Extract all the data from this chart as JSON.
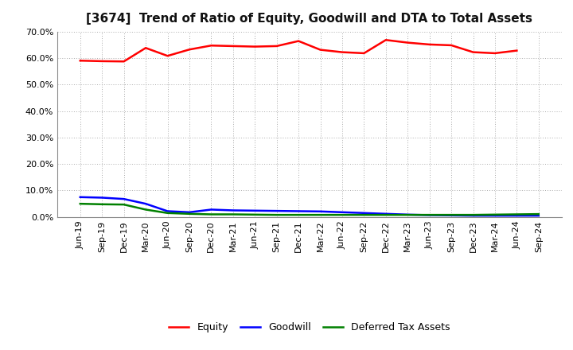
{
  "title": "[3674]  Trend of Ratio of Equity, Goodwill and DTA to Total Assets",
  "x_labels": [
    "Jun-19",
    "Sep-19",
    "Dec-19",
    "Mar-20",
    "Jun-20",
    "Sep-20",
    "Dec-20",
    "Mar-21",
    "Jun-21",
    "Sep-21",
    "Dec-21",
    "Mar-22",
    "Jun-22",
    "Sep-22",
    "Dec-22",
    "Mar-23",
    "Jun-23",
    "Sep-23",
    "Dec-23",
    "Mar-24",
    "Jun-24",
    "Sep-24"
  ],
  "equity": [
    59.0,
    58.8,
    58.7,
    63.8,
    60.8,
    63.2,
    64.7,
    64.5,
    64.3,
    64.5,
    66.4,
    63.1,
    62.2,
    61.8,
    66.8,
    65.8,
    65.1,
    64.8,
    62.2,
    61.8,
    62.8,
    null
  ],
  "goodwill": [
    7.5,
    7.3,
    6.8,
    5.0,
    2.2,
    1.8,
    2.8,
    2.5,
    2.4,
    2.3,
    2.2,
    2.1,
    1.8,
    1.5,
    1.2,
    0.9,
    0.7,
    0.6,
    0.5,
    0.5,
    0.5,
    0.5
  ],
  "dta": [
    5.0,
    4.8,
    4.7,
    2.8,
    1.5,
    1.2,
    1.0,
    1.0,
    0.9,
    0.8,
    0.8,
    0.8,
    0.8,
    0.8,
    0.8,
    0.8,
    0.8,
    0.8,
    0.8,
    0.9,
    1.0,
    1.1
  ],
  "equity_color": "#ff0000",
  "goodwill_color": "#0000ff",
  "dta_color": "#008000",
  "ylim": [
    0.0,
    70.0
  ],
  "yticks": [
    0.0,
    10.0,
    20.0,
    30.0,
    40.0,
    50.0,
    60.0,
    70.0
  ],
  "bg_color": "#ffffff",
  "grid_color": "#aaaaaa",
  "legend_labels": [
    "Equity",
    "Goodwill",
    "Deferred Tax Assets"
  ],
  "line_width": 1.8,
  "title_fontsize": 11,
  "tick_fontsize": 8,
  "legend_fontsize": 9
}
